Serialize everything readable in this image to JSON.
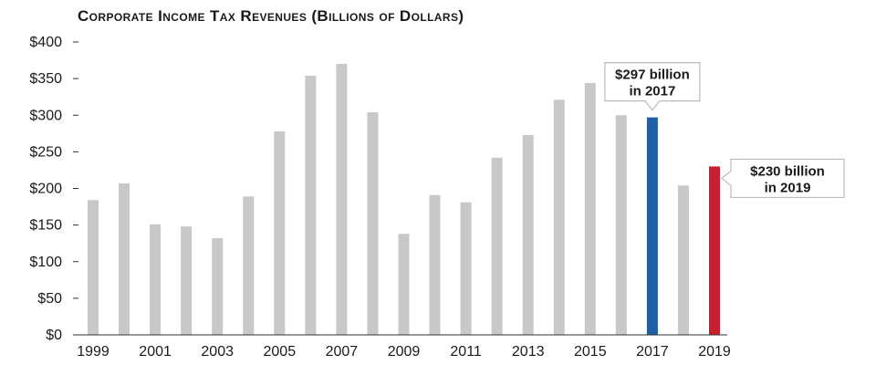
{
  "chart_data": {
    "type": "bar",
    "title": "Corporate Income Tax Revenues (Billions of Dollars)",
    "xlabel": "",
    "ylabel": "",
    "categories": [
      "1999",
      "2000",
      "2001",
      "2002",
      "2003",
      "2004",
      "2005",
      "2006",
      "2007",
      "2008",
      "2009",
      "2010",
      "2011",
      "2012",
      "2013",
      "2014",
      "2015",
      "2016",
      "2017",
      "2018",
      "2019"
    ],
    "values": [
      184,
      207,
      151,
      148,
      132,
      189,
      278,
      354,
      370,
      304,
      138,
      191,
      181,
      242,
      273,
      321,
      344,
      300,
      297,
      204,
      230
    ],
    "ylim": [
      0,
      400
    ],
    "y_ticks": [
      0,
      50,
      100,
      150,
      200,
      250,
      300,
      350,
      400
    ],
    "y_tick_labels": [
      "$0",
      "$50",
      "$100",
      "$150",
      "$200",
      "$250",
      "$300",
      "$350",
      "$400"
    ],
    "x_tick_labels": [
      "1999",
      "2001",
      "2003",
      "2005",
      "2007",
      "2009",
      "2011",
      "2013",
      "2015",
      "2017",
      "2019"
    ],
    "grid": false,
    "colors": {
      "default_bar": "#c8c8c8",
      "highlight_2017": "#1f5fa8",
      "highlight_2019": "#c8202e",
      "axis": "#333333",
      "callout_border": "#bbbbbb",
      "background": "#ffffff"
    },
    "annotations": [
      {
        "category": "2017",
        "line1": "$297 billion",
        "line2": "in 2017",
        "position": "above"
      },
      {
        "category": "2019",
        "line1": "$230 billion",
        "line2": "in 2019",
        "position": "right"
      }
    ]
  }
}
